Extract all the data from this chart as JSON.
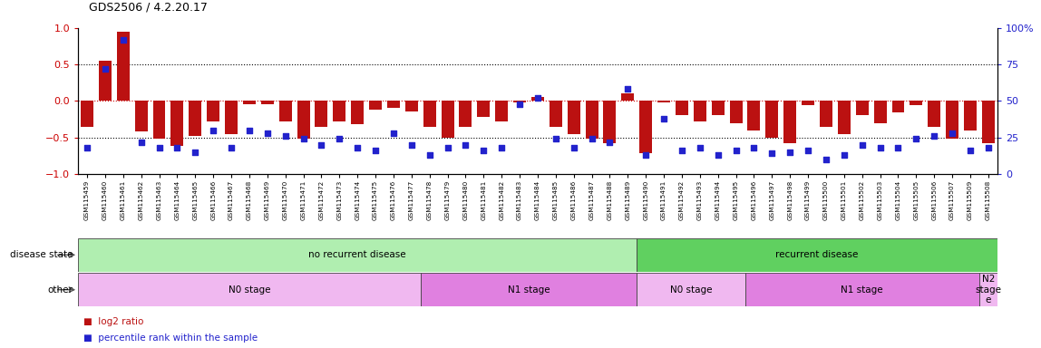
{
  "title": "GDS2506 / 4.2.20.17",
  "samples": [
    "GSM115459",
    "GSM115460",
    "GSM115461",
    "GSM115462",
    "GSM115463",
    "GSM115464",
    "GSM115465",
    "GSM115466",
    "GSM115467",
    "GSM115468",
    "GSM115469",
    "GSM115470",
    "GSM115471",
    "GSM115472",
    "GSM115473",
    "GSM115474",
    "GSM115475",
    "GSM115476",
    "GSM115477",
    "GSM115478",
    "GSM115479",
    "GSM115480",
    "GSM115481",
    "GSM115482",
    "GSM115483",
    "GSM115484",
    "GSM115485",
    "GSM115486",
    "GSM115487",
    "GSM115488",
    "GSM115489",
    "GSM115490",
    "GSM115491",
    "GSM115492",
    "GSM115493",
    "GSM115494",
    "GSM115495",
    "GSM115496",
    "GSM115497",
    "GSM115498",
    "GSM115499",
    "GSM115500",
    "GSM115501",
    "GSM115502",
    "GSM115503",
    "GSM115504",
    "GSM115505",
    "GSM115506",
    "GSM115507",
    "GSM115509",
    "GSM115508"
  ],
  "log2_ratio": [
    -0.35,
    0.55,
    0.95,
    -0.42,
    -0.52,
    -0.62,
    -0.48,
    -0.28,
    -0.45,
    -0.05,
    -0.05,
    -0.28,
    -0.52,
    -0.35,
    -0.28,
    -0.32,
    -0.12,
    -0.1,
    -0.15,
    -0.35,
    -0.5,
    -0.35,
    -0.22,
    -0.28,
    -0.02,
    0.05,
    -0.35,
    -0.45,
    -0.52,
    -0.58,
    0.1,
    -0.72,
    -0.02,
    -0.2,
    -0.28,
    -0.2,
    -0.3,
    -0.4,
    -0.5,
    -0.58,
    -0.06,
    -0.35,
    -0.45,
    -0.2,
    -0.3,
    -0.16,
    -0.06,
    -0.35,
    -0.52,
    -0.4,
    -0.58
  ],
  "percentile": [
    18,
    72,
    92,
    22,
    18,
    18,
    15,
    30,
    18,
    30,
    28,
    26,
    24,
    20,
    24,
    18,
    16,
    28,
    20,
    13,
    18,
    20,
    16,
    18,
    48,
    52,
    24,
    18,
    24,
    22,
    58,
    13,
    38,
    16,
    18,
    13,
    16,
    18,
    14,
    15,
    16,
    10,
    13,
    20,
    18,
    18,
    24,
    26,
    28,
    16,
    18
  ],
  "disease_state_groups": [
    {
      "label": "no recurrent disease",
      "start": 0,
      "end": 31,
      "color": "#b0eeb0"
    },
    {
      "label": "recurrent disease",
      "start": 31,
      "end": 51,
      "color": "#60d060"
    }
  ],
  "other_groups": [
    {
      "label": "N0 stage",
      "start": 0,
      "end": 19,
      "color": "#f0b8f0"
    },
    {
      "label": "N1 stage",
      "start": 19,
      "end": 31,
      "color": "#e080e0"
    },
    {
      "label": "N0 stage",
      "start": 31,
      "end": 37,
      "color": "#f0b8f0"
    },
    {
      "label": "N1 stage",
      "start": 37,
      "end": 50,
      "color": "#e080e0"
    },
    {
      "label": "N2\nstage\ne",
      "start": 50,
      "end": 51,
      "color": "#f0b8f0"
    }
  ],
  "bar_color": "#bb1111",
  "dot_color": "#2222cc",
  "ylim_left": [
    -1.0,
    1.0
  ],
  "ylim_right": [
    0,
    100
  ],
  "yticks_left": [
    -1,
    -0.5,
    0,
    0.5,
    1
  ],
  "yticks_right": [
    0,
    25,
    50,
    75,
    100
  ],
  "hlines_black": [
    -0.5,
    0.5
  ],
  "hline_red_dashed": 0.0
}
